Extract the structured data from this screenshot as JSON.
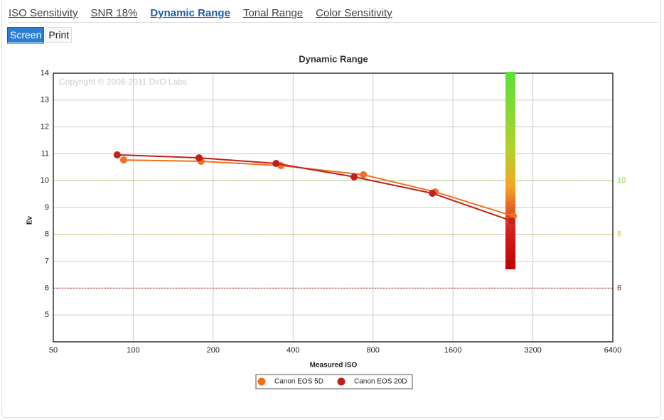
{
  "tabs": [
    "ISO Sensitivity",
    "SNR 18%",
    "Dynamic Range",
    "Tonal Range",
    "Color Sensitivity"
  ],
  "buttons": [
    "Screen",
    "Print"
  ],
  "chart_data": {
    "type": "scatter",
    "title": "Dynamic Range",
    "x_label": "Measured ISO",
    "y_label": "Ev",
    "annotation": "Copyright © 2008-2011 DxO Labs",
    "log_x": true,
    "grid": true,
    "legend": "bottom",
    "xlim": [
      50,
      6400
    ],
    "xticks": [
      50,
      100,
      200,
      400,
      800,
      1600,
      3200,
      6400
    ],
    "ylim": [
      4,
      14
    ],
    "yticks": [
      5,
      6,
      7,
      8,
      9,
      10,
      11,
      12,
      13,
      14
    ],
    "reference_lines": [
      {
        "value": 10,
        "color": "#8fd14f"
      },
      {
        "value": 8,
        "color": "#e8b84a"
      },
      {
        "value": 6,
        "color": "#b01010"
      }
    ],
    "series": [
      {
        "name": "Canon EOS 5D",
        "color": "#f37021",
        "x": [
          92,
          180,
          360,
          736,
          1372,
          2701
        ],
        "values": [
          10.77,
          10.72,
          10.56,
          10.22,
          9.58,
          8.68
        ]
      },
      {
        "name": "Canon EOS 20D",
        "color": "#c1201b",
        "x": [
          87,
          177,
          345,
          679,
          1338,
          2668
        ],
        "values": [
          10.96,
          10.85,
          10.64,
          10.14,
          9.53,
          8.5
        ]
      }
    ]
  }
}
